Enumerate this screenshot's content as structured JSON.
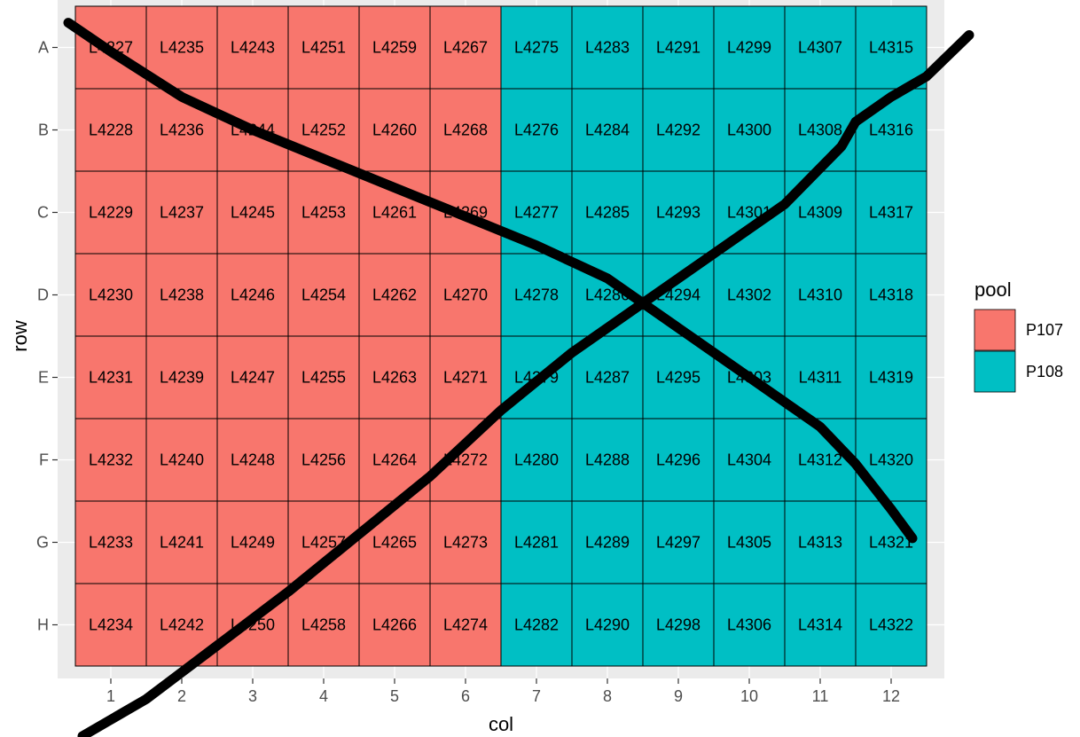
{
  "chart_data": {
    "type": "heatmap",
    "title": "",
    "xlabel": "col",
    "ylabel": "row",
    "x_categories": [
      "1",
      "2",
      "3",
      "4",
      "5",
      "6",
      "7",
      "8",
      "9",
      "10",
      "11",
      "12"
    ],
    "y_categories": [
      "A",
      "B",
      "C",
      "D",
      "E",
      "F",
      "G",
      "H"
    ],
    "cells": [
      {
        "row": "A",
        "col": "1",
        "label": "L4227",
        "pool": "P107"
      },
      {
        "row": "B",
        "col": "1",
        "label": "L4228",
        "pool": "P107"
      },
      {
        "row": "C",
        "col": "1",
        "label": "L4229",
        "pool": "P107"
      },
      {
        "row": "D",
        "col": "1",
        "label": "L4230",
        "pool": "P107"
      },
      {
        "row": "E",
        "col": "1",
        "label": "L4231",
        "pool": "P107"
      },
      {
        "row": "F",
        "col": "1",
        "label": "L4232",
        "pool": "P107"
      },
      {
        "row": "G",
        "col": "1",
        "label": "L4233",
        "pool": "P107"
      },
      {
        "row": "H",
        "col": "1",
        "label": "L4234",
        "pool": "P107"
      },
      {
        "row": "A",
        "col": "2",
        "label": "L4235",
        "pool": "P107"
      },
      {
        "row": "B",
        "col": "2",
        "label": "L4236",
        "pool": "P107"
      },
      {
        "row": "C",
        "col": "2",
        "label": "L4237",
        "pool": "P107"
      },
      {
        "row": "D",
        "col": "2",
        "label": "L4238",
        "pool": "P107"
      },
      {
        "row": "E",
        "col": "2",
        "label": "L4239",
        "pool": "P107"
      },
      {
        "row": "F",
        "col": "2",
        "label": "L4240",
        "pool": "P107"
      },
      {
        "row": "G",
        "col": "2",
        "label": "L4241",
        "pool": "P107"
      },
      {
        "row": "H",
        "col": "2",
        "label": "L4242",
        "pool": "P107"
      },
      {
        "row": "A",
        "col": "3",
        "label": "L4243",
        "pool": "P107"
      },
      {
        "row": "B",
        "col": "3",
        "label": "L4244",
        "pool": "P107"
      },
      {
        "row": "C",
        "col": "3",
        "label": "L4245",
        "pool": "P107"
      },
      {
        "row": "D",
        "col": "3",
        "label": "L4246",
        "pool": "P107"
      },
      {
        "row": "E",
        "col": "3",
        "label": "L4247",
        "pool": "P107"
      },
      {
        "row": "F",
        "col": "3",
        "label": "L4248",
        "pool": "P107"
      },
      {
        "row": "G",
        "col": "3",
        "label": "L4249",
        "pool": "P107"
      },
      {
        "row": "H",
        "col": "3",
        "label": "L4250",
        "pool": "P107"
      },
      {
        "row": "A",
        "col": "4",
        "label": "L4251",
        "pool": "P107"
      },
      {
        "row": "B",
        "col": "4",
        "label": "L4252",
        "pool": "P107"
      },
      {
        "row": "C",
        "col": "4",
        "label": "L4253",
        "pool": "P107"
      },
      {
        "row": "D",
        "col": "4",
        "label": "L4254",
        "pool": "P107"
      },
      {
        "row": "E",
        "col": "4",
        "label": "L4255",
        "pool": "P107"
      },
      {
        "row": "F",
        "col": "4",
        "label": "L4256",
        "pool": "P107"
      },
      {
        "row": "G",
        "col": "4",
        "label": "L4257",
        "pool": "P107"
      },
      {
        "row": "H",
        "col": "4",
        "label": "L4258",
        "pool": "P107"
      },
      {
        "row": "A",
        "col": "5",
        "label": "L4259",
        "pool": "P107"
      },
      {
        "row": "B",
        "col": "5",
        "label": "L4260",
        "pool": "P107"
      },
      {
        "row": "C",
        "col": "5",
        "label": "L4261",
        "pool": "P107"
      },
      {
        "row": "D",
        "col": "5",
        "label": "L4262",
        "pool": "P107"
      },
      {
        "row": "E",
        "col": "5",
        "label": "L4263",
        "pool": "P107"
      },
      {
        "row": "F",
        "col": "5",
        "label": "L4264",
        "pool": "P107"
      },
      {
        "row": "G",
        "col": "5",
        "label": "L4265",
        "pool": "P107"
      },
      {
        "row": "H",
        "col": "5",
        "label": "L4266",
        "pool": "P107"
      },
      {
        "row": "A",
        "col": "6",
        "label": "L4267",
        "pool": "P107"
      },
      {
        "row": "B",
        "col": "6",
        "label": "L4268",
        "pool": "P107"
      },
      {
        "row": "C",
        "col": "6",
        "label": "L4269",
        "pool": "P107"
      },
      {
        "row": "D",
        "col": "6",
        "label": "L4270",
        "pool": "P107"
      },
      {
        "row": "E",
        "col": "6",
        "label": "L4271",
        "pool": "P107"
      },
      {
        "row": "F",
        "col": "6",
        "label": "L4272",
        "pool": "P107"
      },
      {
        "row": "G",
        "col": "6",
        "label": "L4273",
        "pool": "P107"
      },
      {
        "row": "H",
        "col": "6",
        "label": "L4274",
        "pool": "P107"
      },
      {
        "row": "A",
        "col": "7",
        "label": "L4275",
        "pool": "P108"
      },
      {
        "row": "B",
        "col": "7",
        "label": "L4276",
        "pool": "P108"
      },
      {
        "row": "C",
        "col": "7",
        "label": "L4277",
        "pool": "P108"
      },
      {
        "row": "D",
        "col": "7",
        "label": "L4278",
        "pool": "P108"
      },
      {
        "row": "E",
        "col": "7",
        "label": "L4279",
        "pool": "P108"
      },
      {
        "row": "F",
        "col": "7",
        "label": "L4280",
        "pool": "P108"
      },
      {
        "row": "G",
        "col": "7",
        "label": "L4281",
        "pool": "P108"
      },
      {
        "row": "H",
        "col": "7",
        "label": "L4282",
        "pool": "P108"
      },
      {
        "row": "A",
        "col": "8",
        "label": "L4283",
        "pool": "P108"
      },
      {
        "row": "B",
        "col": "8",
        "label": "L4284",
        "pool": "P108"
      },
      {
        "row": "C",
        "col": "8",
        "label": "L4285",
        "pool": "P108"
      },
      {
        "row": "D",
        "col": "8",
        "label": "L4286",
        "pool": "P108"
      },
      {
        "row": "E",
        "col": "8",
        "label": "L4287",
        "pool": "P108"
      },
      {
        "row": "F",
        "col": "8",
        "label": "L4288",
        "pool": "P108"
      },
      {
        "row": "G",
        "col": "8",
        "label": "L4289",
        "pool": "P108"
      },
      {
        "row": "H",
        "col": "8",
        "label": "L4290",
        "pool": "P108"
      },
      {
        "row": "A",
        "col": "9",
        "label": "L4291",
        "pool": "P108"
      },
      {
        "row": "B",
        "col": "9",
        "label": "L4292",
        "pool": "P108"
      },
      {
        "row": "C",
        "col": "9",
        "label": "L4293",
        "pool": "P108"
      },
      {
        "row": "D",
        "col": "9",
        "label": "L4294",
        "pool": "P108"
      },
      {
        "row": "E",
        "col": "9",
        "label": "L4295",
        "pool": "P108"
      },
      {
        "row": "F",
        "col": "9",
        "label": "L4296",
        "pool": "P108"
      },
      {
        "row": "G",
        "col": "9",
        "label": "L4297",
        "pool": "P108"
      },
      {
        "row": "H",
        "col": "9",
        "label": "L4298",
        "pool": "P108"
      },
      {
        "row": "A",
        "col": "10",
        "label": "L4299",
        "pool": "P108"
      },
      {
        "row": "B",
        "col": "10",
        "label": "L4300",
        "pool": "P108"
      },
      {
        "row": "C",
        "col": "10",
        "label": "L4301",
        "pool": "P108"
      },
      {
        "row": "D",
        "col": "10",
        "label": "L4302",
        "pool": "P108"
      },
      {
        "row": "E",
        "col": "10",
        "label": "L4303",
        "pool": "P108"
      },
      {
        "row": "F",
        "col": "10",
        "label": "L4304",
        "pool": "P108"
      },
      {
        "row": "G",
        "col": "10",
        "label": "L4305",
        "pool": "P108"
      },
      {
        "row": "H",
        "col": "10",
        "label": "L4306",
        "pool": "P108"
      },
      {
        "row": "A",
        "col": "11",
        "label": "L4307",
        "pool": "P108"
      },
      {
        "row": "B",
        "col": "11",
        "label": "L4308",
        "pool": "P108"
      },
      {
        "row": "C",
        "col": "11",
        "label": "L4309",
        "pool": "P108"
      },
      {
        "row": "D",
        "col": "11",
        "label": "L4310",
        "pool": "P108"
      },
      {
        "row": "E",
        "col": "11",
        "label": "L4311",
        "pool": "P108"
      },
      {
        "row": "F",
        "col": "11",
        "label": "L4312",
        "pool": "P108"
      },
      {
        "row": "G",
        "col": "11",
        "label": "L4313",
        "pool": "P108"
      },
      {
        "row": "H",
        "col": "11",
        "label": "L4314",
        "pool": "P108"
      },
      {
        "row": "A",
        "col": "12",
        "label": "L4315",
        "pool": "P108"
      },
      {
        "row": "B",
        "col": "12",
        "label": "L4316",
        "pool": "P108"
      },
      {
        "row": "C",
        "col": "12",
        "label": "L4317",
        "pool": "P108"
      },
      {
        "row": "D",
        "col": "12",
        "label": "L4318",
        "pool": "P108"
      },
      {
        "row": "E",
        "col": "12",
        "label": "L4319",
        "pool": "P108"
      },
      {
        "row": "F",
        "col": "12",
        "label": "L4320",
        "pool": "P108"
      },
      {
        "row": "G",
        "col": "12",
        "label": "L4321",
        "pool": "P108"
      },
      {
        "row": "H",
        "col": "12",
        "label": "L4322",
        "pool": "P108"
      }
    ],
    "legend": {
      "title": "pool",
      "placement": "right",
      "entries": [
        {
          "name": "P107",
          "color": "#f8766d"
        },
        {
          "name": "P108",
          "color": "#00bfc4"
        }
      ]
    },
    "overlay": {
      "description_visible": false,
      "color": "#000000",
      "strokes": [
        {
          "points": [
            [
              0.6,
              -9.35
            ],
            [
              1.5,
              -8.9
            ],
            [
              2.5,
              -8.25
            ],
            [
              3.5,
              -7.6
            ],
            [
              4.5,
              -6.9
            ],
            [
              5.5,
              -6.2
            ],
            [
              6.5,
              -5.4
            ],
            [
              7.5,
              -4.7
            ],
            [
              8.5,
              -4.1
            ],
            [
              9.5,
              -3.5
            ],
            [
              10.5,
              -2.9
            ],
            [
              11.3,
              -2.2
            ],
            [
              11.5,
              -1.9
            ],
            [
              12,
              -1.6
            ],
            [
              12.5,
              -1.35
            ],
            [
              13.1,
              -0.85
            ]
          ]
        },
        {
          "points": [
            [
              0.4,
              -0.7
            ],
            [
              1,
              -1.05
            ],
            [
              2,
              -1.6
            ],
            [
              3,
              -2.0
            ],
            [
              4,
              -2.35
            ],
            [
              5,
              -2.7
            ],
            [
              6,
              -3.05
            ],
            [
              7,
              -3.4
            ],
            [
              7.5,
              -3.6
            ],
            [
              8,
              -3.8
            ],
            [
              9,
              -4.4
            ],
            [
              10,
              -5.0
            ],
            [
              11,
              -5.6
            ],
            [
              11.5,
              -6.05
            ],
            [
              12,
              -6.6
            ],
            [
              12.3,
              -6.95
            ]
          ]
        }
      ]
    },
    "panel_background": "#ebebeb",
    "grid": true
  }
}
